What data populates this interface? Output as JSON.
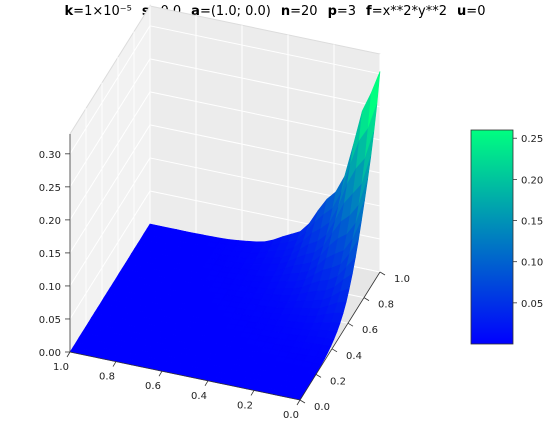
{
  "title": {
    "params": [
      {
        "key": "k",
        "val": "=1×10⁻⁵"
      },
      {
        "key": "s",
        "val": "=0.0"
      },
      {
        "key": "a",
        "val": "=(1.0; 0.0)"
      },
      {
        "key": "n",
        "val": "=20"
      },
      {
        "key": "p",
        "val": "=3"
      },
      {
        "key": "f",
        "val": "=x**2*y**2"
      },
      {
        "key": "u",
        "val": "=0"
      }
    ]
  },
  "chart_data": {
    "type": "surface3d",
    "colormap": "winter",
    "x_ticks": [
      "1.0",
      "0.8",
      "0.6",
      "0.4",
      "0.2",
      "0.0"
    ],
    "y_ticks": [
      "0.0",
      "0.2",
      "0.4",
      "0.6",
      "0.8",
      "1.0"
    ],
    "z_ticks": [
      "0.00",
      "0.05",
      "0.10",
      "0.15",
      "0.20",
      "0.25",
      "0.30"
    ],
    "xlim": [
      0,
      1
    ],
    "ylim": [
      0,
      1
    ],
    "zlim": [
      0,
      0.33
    ],
    "colorbar": {
      "ticks": [
        "0.05",
        "0.10",
        "0.15",
        "0.20",
        "0.25"
      ],
      "range": [
        0,
        0.26
      ]
    },
    "surface_peak": 0.33,
    "surface_peak_at": {
      "x": 0.0,
      "y": 1.0
    },
    "grid_on": true
  }
}
